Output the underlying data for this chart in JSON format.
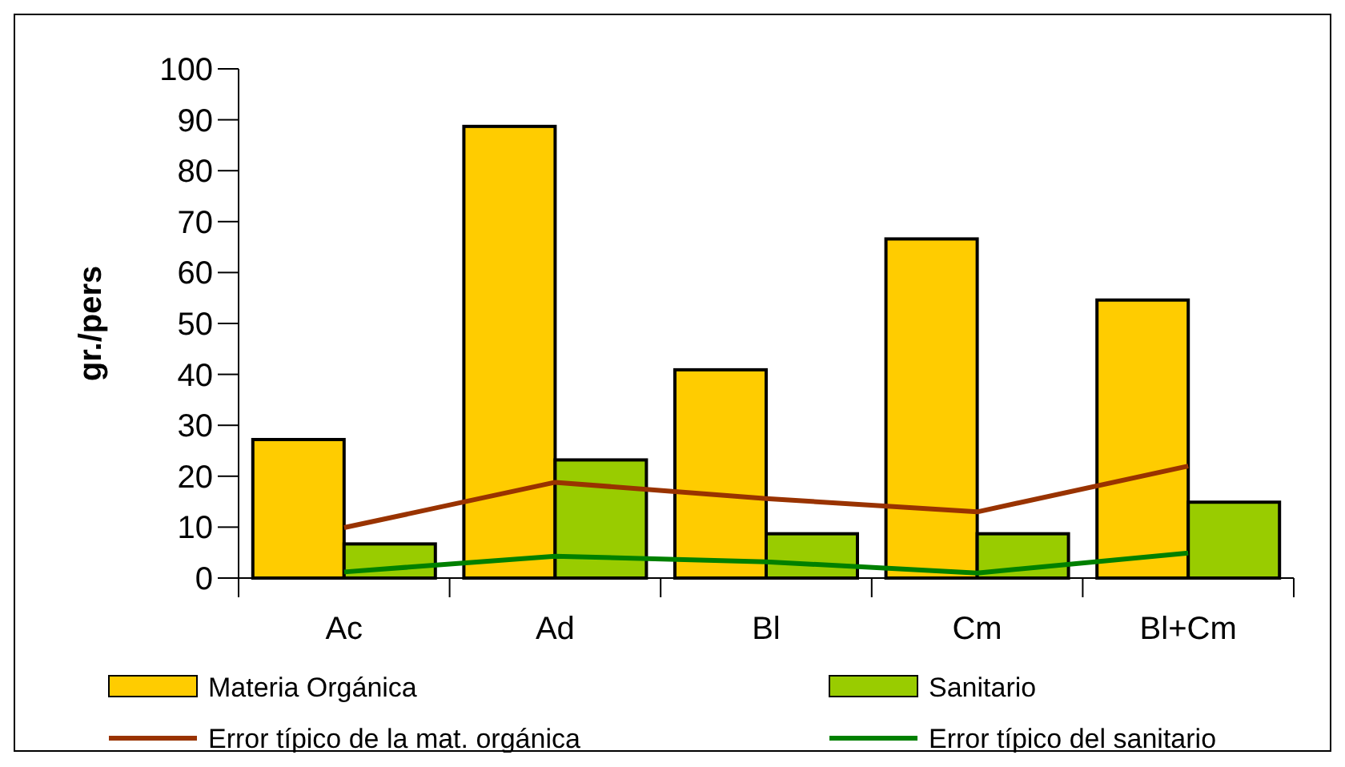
{
  "chart_data": {
    "type": "bar",
    "ylabel": "gr./pers",
    "categories": [
      "Ac",
      "Ad",
      "Bl",
      "Cm",
      "Bl+Cm"
    ],
    "series": [
      {
        "name": "Materia Orgánica",
        "color": "#ffcc00",
        "values": [
          27.2,
          88.7,
          40.9,
          66.6,
          54.6
        ]
      },
      {
        "name": "Sanitario",
        "color": "#99cc00",
        "values": [
          6.7,
          23.2,
          8.7,
          8.7,
          14.9
        ]
      },
      {
        "name": "Error típico de la mat. orgánica",
        "type": "line",
        "color": "#993300",
        "values": [
          9.9,
          18.8,
          15.6,
          13.0,
          22.0
        ]
      },
      {
        "name": "Error típico del sanitario",
        "type": "line",
        "color": "#008000",
        "values": [
          1.2,
          4.3,
          3.2,
          1.0,
          4.9
        ]
      }
    ],
    "ylim": [
      0,
      100
    ],
    "yticks": [
      0,
      10,
      20,
      30,
      40,
      50,
      60,
      70,
      80,
      90,
      100
    ],
    "grid": false,
    "legend": "bottom",
    "marker": "none"
  }
}
